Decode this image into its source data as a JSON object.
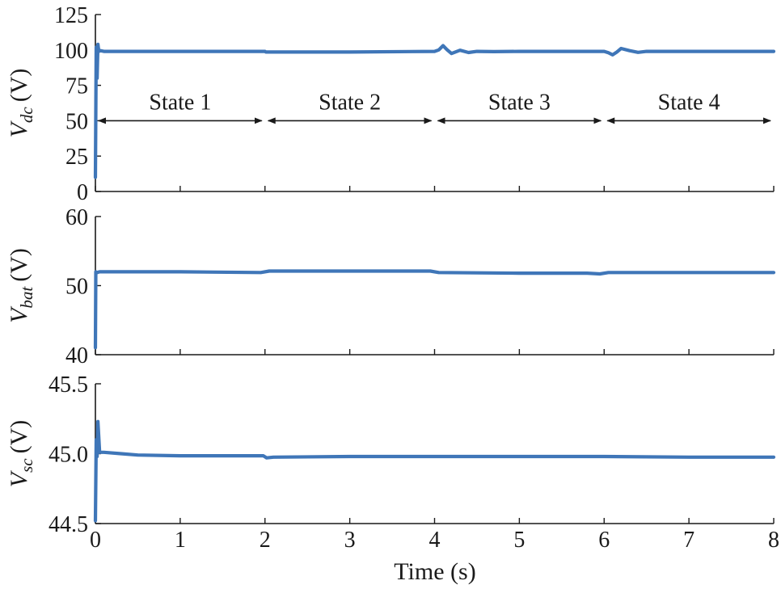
{
  "chart_data": [
    {
      "type": "line",
      "ylabel_symbol": "V",
      "ylabel_subscript": "dc",
      "ylabel_unit": "(V)",
      "xlim": [
        0,
        8
      ],
      "ylim": [
        0,
        125
      ],
      "y_ticks": [
        "0",
        "25",
        "50",
        "75",
        "100",
        "125"
      ],
      "line_color": "#3f76b8",
      "series": [
        {
          "values_x": [
            0,
            0.01,
            0.02,
            0.03,
            0.04,
            0.06,
            0.1,
            0.5,
            1,
            2,
            2.01,
            3,
            4,
            4.05,
            4.1,
            4.15,
            4.2,
            4.3,
            4.4,
            4.5,
            4.7,
            5,
            6,
            6.05,
            6.1,
            6.15,
            6.2,
            6.3,
            6.4,
            6.5,
            7,
            8
          ],
          "values_y": [
            10,
            102,
            80,
            104,
            99,
            99.5,
            99,
            99,
            99,
            99,
            98.5,
            98.5,
            99,
            100,
            103,
            100,
            97.5,
            99.8,
            98.2,
            99,
            98.8,
            99,
            99,
            98,
            96.5,
            98.5,
            101,
            99.5,
            98.3,
            99,
            99,
            99
          ]
        }
      ],
      "state_annotations": {
        "arrow_y": 50,
        "boundaries": [
          0,
          2,
          4,
          6,
          8
        ],
        "labels": [
          "State 1",
          "State 2",
          "State 3",
          "State 4"
        ]
      }
    },
    {
      "type": "line",
      "ylabel_symbol": "V",
      "ylabel_subscript": "bat",
      "ylabel_unit": "(V)",
      "xlim": [
        0,
        8
      ],
      "ylim": [
        40,
        60
      ],
      "y_ticks": [
        "40",
        "50",
        "60"
      ],
      "line_color": "#3f76b8",
      "series": [
        {
          "values_x": [
            0,
            0.005,
            0.02,
            0.05,
            1,
            1.95,
            2.05,
            3,
            3.95,
            4.05,
            5,
            5.8,
            5.95,
            6.05,
            7,
            8
          ],
          "values_y": [
            41,
            52,
            51.9,
            52,
            52,
            51.9,
            52.1,
            52.1,
            52.1,
            51.9,
            51.8,
            51.8,
            51.7,
            51.9,
            51.9,
            51.9
          ]
        }
      ]
    },
    {
      "type": "line",
      "ylabel_symbol": "V",
      "ylabel_subscript": "sc",
      "ylabel_unit": "(V)",
      "xlim": [
        0,
        8
      ],
      "ylim": [
        44.5,
        45.5
      ],
      "y_ticks": [
        "44.5",
        "45.0",
        "45.5"
      ],
      "line_color": "#3f76b8",
      "series": [
        {
          "values_x": [
            0,
            0.01,
            0.02,
            0.03,
            0.05,
            0.1,
            0.3,
            0.5,
            1,
            1.5,
            1.98,
            2.02,
            2.1,
            3,
            4,
            5,
            6,
            7,
            8
          ],
          "values_y": [
            44.52,
            45.1,
            44.98,
            45.23,
            45.01,
            45.01,
            45.0,
            44.99,
            44.985,
            44.985,
            44.985,
            44.97,
            44.975,
            44.98,
            44.98,
            44.98,
            44.98,
            44.975,
            44.975
          ]
        }
      ]
    }
  ],
  "x_axis": {
    "ticks": [
      "0",
      "1",
      "2",
      "3",
      "4",
      "5",
      "6",
      "7",
      "8"
    ],
    "label": "Time (s)"
  }
}
